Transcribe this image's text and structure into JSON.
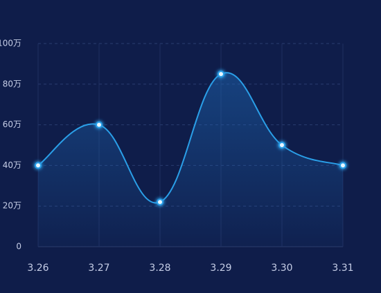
{
  "chart_data": {
    "type": "line",
    "categories": [
      "3.26",
      "3.27",
      "3.28",
      "3.29",
      "3.30",
      "3.31"
    ],
    "series": [
      {
        "color": "#2a9fe8",
        "values": [
          40,
          60,
          22,
          85,
          50,
          40
        ]
      }
    ],
    "ylim": [
      0,
      100
    ],
    "yticks": [
      0,
      {
        "value": 20,
        "label": "20万"
      },
      {
        "value": 40,
        "label": "40万"
      },
      {
        "value": 60,
        "label": "60万"
      },
      {
        "value": 80,
        "label": "80万"
      },
      {
        "value": 100,
        "label": "100万"
      }
    ],
    "grid": true,
    "smooth": true,
    "area": true
  }
}
